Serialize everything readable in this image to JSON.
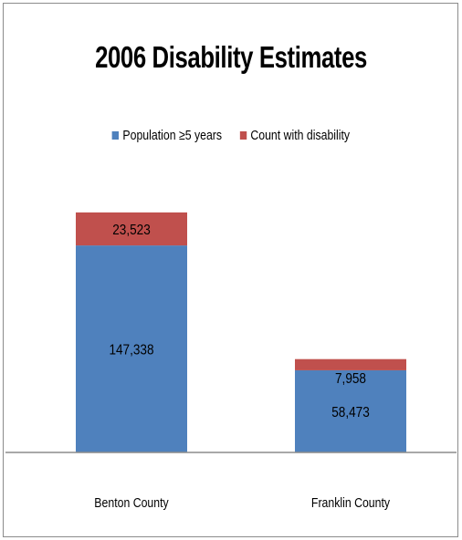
{
  "chart_data": {
    "type": "bar",
    "stacked": true,
    "title": "2006 Disability Estimates",
    "categories": [
      "Benton County",
      "Franklin County"
    ],
    "series": [
      {
        "name": "Population ≥5 years",
        "color": "#4F81BD",
        "values": [
          147338,
          58473
        ],
        "labels": [
          "147,338",
          "58,473"
        ]
      },
      {
        "name": "Count with disability",
        "color": "#C0504D",
        "values": [
          23523,
          7958
        ],
        "labels": [
          "23,523",
          "7,958"
        ]
      }
    ],
    "legend_position": "top",
    "ylim": [
      0,
      200000
    ],
    "axis_visible": false,
    "grid": false
  }
}
